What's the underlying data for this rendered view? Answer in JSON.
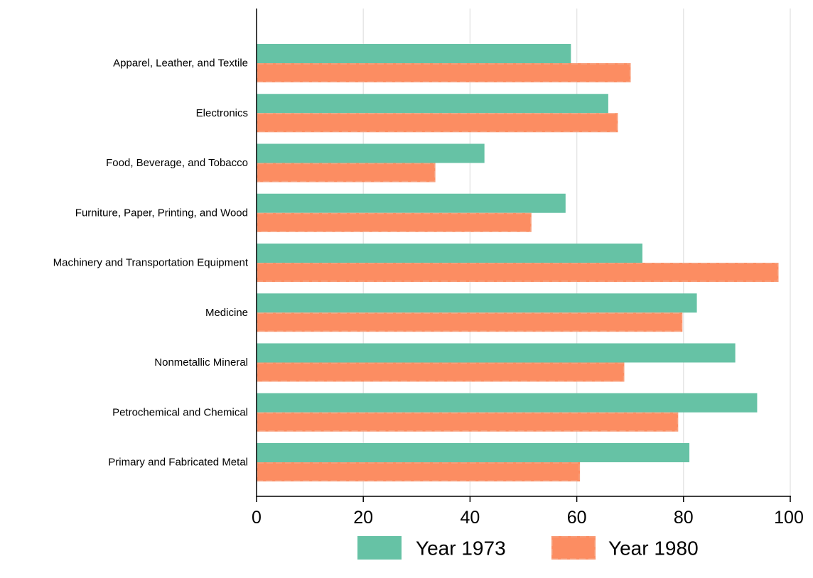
{
  "chart_data": {
    "type": "bar",
    "orientation": "horizontal",
    "title": "",
    "xlabel": "",
    "ylabel": "",
    "xlim": [
      0,
      100
    ],
    "xticks": [
      0,
      20,
      40,
      60,
      80,
      100
    ],
    "grid": true,
    "legend_position": "bottom",
    "categories": [
      "Apparel, Leather, and Textile",
      "Electronics",
      "Food, Beverage, and Tobacco",
      "Furniture, Paper, Printing, and Wood",
      "Machinery and Transportation Equipment",
      "Medicine",
      "Nonmetallic Mineral",
      "Petrochemical and Chemical",
      "Primary and Fabricated Metal"
    ],
    "series": [
      {
        "name": "Year 1973",
        "color": "#66c2a5",
        "values": [
          58.9,
          65.9,
          42.7,
          57.9,
          72.3,
          82.5,
          89.7,
          93.8,
          81.1
        ]
      },
      {
        "name": "Year 1980",
        "color": "#fc8d62",
        "values": [
          70.1,
          67.7,
          33.5,
          51.5,
          97.8,
          79.8,
          68.9,
          79.0,
          60.6
        ]
      }
    ]
  }
}
